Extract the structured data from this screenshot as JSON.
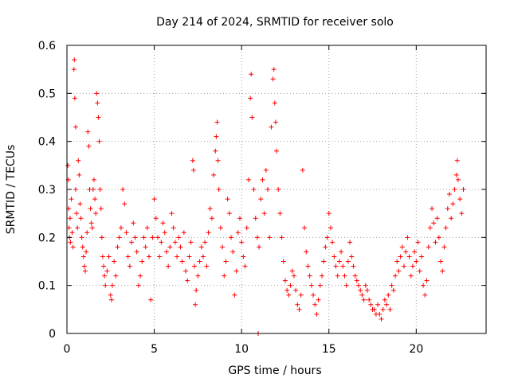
{
  "chart_data": {
    "type": "scatter",
    "title": "Day 214 of 2024, SRMTID for receiver solo",
    "xlabel": "GPS time / hours",
    "ylabel": "SRMTID / TECUs",
    "xlim": [
      0,
      24
    ],
    "ylim": [
      0,
      0.6
    ],
    "xticks": [
      0,
      5,
      10,
      15,
      20
    ],
    "yticks": [
      0,
      0.1,
      0.2,
      0.3,
      0.4,
      0.5,
      0.6
    ],
    "xtick_labels": [
      "0",
      "5",
      "10",
      "15",
      "20"
    ],
    "ytick_labels": [
      "0",
      "0.1",
      "0.2",
      "0.3",
      "0.4",
      "0.5",
      "0.6"
    ],
    "grid": true,
    "marker": "+",
    "color": "#ff0000",
    "series": [
      {
        "name": "SRMTID",
        "points": [
          [
            0.05,
            0.35
          ],
          [
            0.08,
            0.32
          ],
          [
            0.1,
            0.26
          ],
          [
            0.12,
            0.22
          ],
          [
            0.15,
            0.2
          ],
          [
            0.18,
            0.24
          ],
          [
            0.2,
            0.19
          ],
          [
            0.25,
            0.28
          ],
          [
            0.3,
            0.21
          ],
          [
            0.35,
            0.18
          ],
          [
            0.4,
            0.55
          ],
          [
            0.42,
            0.57
          ],
          [
            0.45,
            0.49
          ],
          [
            0.5,
            0.43
          ],
          [
            0.5,
            0.3
          ],
          [
            0.55,
            0.25
          ],
          [
            0.6,
            0.22
          ],
          [
            0.65,
            0.36
          ],
          [
            0.7,
            0.33
          ],
          [
            0.75,
            0.27
          ],
          [
            0.8,
            0.24
          ],
          [
            0.85,
            0.2
          ],
          [
            0.9,
            0.18
          ],
          [
            0.95,
            0.16
          ],
          [
            1.0,
            0.14
          ],
          [
            1.05,
            0.13
          ],
          [
            1.1,
            0.17
          ],
          [
            1.15,
            0.21
          ],
          [
            1.2,
            0.42
          ],
          [
            1.25,
            0.39
          ],
          [
            1.3,
            0.3
          ],
          [
            1.35,
            0.26
          ],
          [
            1.4,
            0.23
          ],
          [
            1.45,
            0.22
          ],
          [
            1.5,
            0.3
          ],
          [
            1.55,
            0.32
          ],
          [
            1.6,
            0.28
          ],
          [
            1.65,
            0.25
          ],
          [
            1.7,
            0.5
          ],
          [
            1.75,
            0.48
          ],
          [
            1.8,
            0.45
          ],
          [
            1.85,
            0.4
          ],
          [
            1.9,
            0.3
          ],
          [
            1.95,
            0.26
          ],
          [
            2.0,
            0.2
          ],
          [
            2.05,
            0.16
          ],
          [
            2.1,
            0.14
          ],
          [
            2.15,
            0.12
          ],
          [
            2.2,
            0.1
          ],
          [
            2.3,
            0.13
          ],
          [
            2.4,
            0.16
          ],
          [
            2.5,
            0.08
          ],
          [
            2.55,
            0.07
          ],
          [
            2.6,
            0.1
          ],
          [
            2.7,
            0.15
          ],
          [
            2.8,
            0.12
          ],
          [
            2.9,
            0.18
          ],
          [
            3.0,
            0.2
          ],
          [
            3.1,
            0.22
          ],
          [
            3.2,
            0.3
          ],
          [
            3.3,
            0.27
          ],
          [
            3.4,
            0.21
          ],
          [
            3.5,
            0.16
          ],
          [
            3.6,
            0.14
          ],
          [
            3.7,
            0.19
          ],
          [
            3.8,
            0.23
          ],
          [
            3.9,
            0.2
          ],
          [
            4.0,
            0.17
          ],
          [
            4.1,
            0.1
          ],
          [
            4.2,
            0.12
          ],
          [
            4.3,
            0.15
          ],
          [
            4.4,
            0.2
          ],
          [
            4.5,
            0.18
          ],
          [
            4.6,
            0.22
          ],
          [
            4.7,
            0.16
          ],
          [
            4.8,
            0.07
          ],
          [
            4.9,
            0.2
          ],
          [
            5.0,
            0.28
          ],
          [
            5.1,
            0.24
          ],
          [
            5.2,
            0.2
          ],
          [
            5.3,
            0.16
          ],
          [
            5.4,
            0.19
          ],
          [
            5.5,
            0.23
          ],
          [
            5.6,
            0.21
          ],
          [
            5.7,
            0.17
          ],
          [
            5.8,
            0.14
          ],
          [
            5.9,
            0.18
          ],
          [
            6.0,
            0.25
          ],
          [
            6.1,
            0.22
          ],
          [
            6.2,
            0.19
          ],
          [
            6.3,
            0.16
          ],
          [
            6.4,
            0.2
          ],
          [
            6.5,
            0.18
          ],
          [
            6.6,
            0.15
          ],
          [
            6.7,
            0.21
          ],
          [
            6.8,
            0.13
          ],
          [
            6.9,
            0.11
          ],
          [
            7.0,
            0.16
          ],
          [
            7.1,
            0.19
          ],
          [
            7.2,
            0.36
          ],
          [
            7.25,
            0.34
          ],
          [
            7.3,
            0.14
          ],
          [
            7.35,
            0.06
          ],
          [
            7.4,
            0.09
          ],
          [
            7.5,
            0.12
          ],
          [
            7.6,
            0.15
          ],
          [
            7.7,
            0.18
          ],
          [
            7.8,
            0.16
          ],
          [
            7.9,
            0.19
          ],
          [
            8.0,
            0.14
          ],
          [
            8.1,
            0.21
          ],
          [
            8.2,
            0.26
          ],
          [
            8.3,
            0.24
          ],
          [
            8.4,
            0.33
          ],
          [
            8.5,
            0.38
          ],
          [
            8.55,
            0.41
          ],
          [
            8.6,
            0.44
          ],
          [
            8.65,
            0.36
          ],
          [
            8.7,
            0.3
          ],
          [
            8.8,
            0.22
          ],
          [
            8.9,
            0.18
          ],
          [
            9.0,
            0.12
          ],
          [
            9.1,
            0.15
          ],
          [
            9.2,
            0.28
          ],
          [
            9.3,
            0.25
          ],
          [
            9.4,
            0.2
          ],
          [
            9.5,
            0.17
          ],
          [
            9.6,
            0.08
          ],
          [
            9.7,
            0.13
          ],
          [
            9.8,
            0.21
          ],
          [
            9.9,
            0.24
          ],
          [
            10.0,
            0.19
          ],
          [
            10.1,
            0.16
          ],
          [
            10.2,
            0.14
          ],
          [
            10.3,
            0.22
          ],
          [
            10.4,
            0.32
          ],
          [
            10.5,
            0.49
          ],
          [
            10.55,
            0.54
          ],
          [
            10.6,
            0.45
          ],
          [
            10.7,
            0.3
          ],
          [
            10.8,
            0.24
          ],
          [
            10.9,
            0.2
          ],
          [
            10.95,
            0.0
          ],
          [
            11.0,
            0.18
          ],
          [
            11.1,
            0.28
          ],
          [
            11.2,
            0.32
          ],
          [
            11.3,
            0.25
          ],
          [
            11.4,
            0.34
          ],
          [
            11.5,
            0.3
          ],
          [
            11.6,
            0.2
          ],
          [
            11.7,
            0.43
          ],
          [
            11.8,
            0.53
          ],
          [
            11.85,
            0.55
          ],
          [
            11.9,
            0.48
          ],
          [
            11.95,
            0.44
          ],
          [
            12.0,
            0.38
          ],
          [
            12.1,
            0.3
          ],
          [
            12.2,
            0.25
          ],
          [
            12.3,
            0.2
          ],
          [
            12.4,
            0.15
          ],
          [
            12.5,
            0.11
          ],
          [
            12.6,
            0.09
          ],
          [
            12.7,
            0.08
          ],
          [
            12.8,
            0.1
          ],
          [
            12.9,
            0.13
          ],
          [
            13.0,
            0.12
          ],
          [
            13.1,
            0.09
          ],
          [
            13.2,
            0.06
          ],
          [
            13.3,
            0.05
          ],
          [
            13.4,
            0.08
          ],
          [
            13.5,
            0.34
          ],
          [
            13.6,
            0.22
          ],
          [
            13.7,
            0.17
          ],
          [
            13.8,
            0.14
          ],
          [
            13.9,
            0.12
          ],
          [
            14.0,
            0.1
          ],
          [
            14.1,
            0.08
          ],
          [
            14.2,
            0.06
          ],
          [
            14.3,
            0.04
          ],
          [
            14.4,
            0.07
          ],
          [
            14.5,
            0.1
          ],
          [
            14.6,
            0.12
          ],
          [
            14.7,
            0.15
          ],
          [
            14.8,
            0.18
          ],
          [
            14.9,
            0.2
          ],
          [
            15.0,
            0.25
          ],
          [
            15.1,
            0.22
          ],
          [
            15.2,
            0.19
          ],
          [
            15.3,
            0.16
          ],
          [
            15.4,
            0.14
          ],
          [
            15.5,
            0.12
          ],
          [
            15.6,
            0.15
          ],
          [
            15.7,
            0.17
          ],
          [
            15.8,
            0.14
          ],
          [
            15.9,
            0.12
          ],
          [
            16.0,
            0.1
          ],
          [
            16.1,
            0.15
          ],
          [
            16.2,
            0.19
          ],
          [
            16.3,
            0.16
          ],
          [
            16.4,
            0.14
          ],
          [
            16.5,
            0.12
          ],
          [
            16.6,
            0.11
          ],
          [
            16.7,
            0.1
          ],
          [
            16.8,
            0.09
          ],
          [
            16.9,
            0.08
          ],
          [
            17.0,
            0.07
          ],
          [
            17.1,
            0.1
          ],
          [
            17.2,
            0.09
          ],
          [
            17.3,
            0.07
          ],
          [
            17.4,
            0.06
          ],
          [
            17.5,
            0.05
          ],
          [
            17.6,
            0.05
          ],
          [
            17.7,
            0.04
          ],
          [
            17.8,
            0.06
          ],
          [
            17.9,
            0.04
          ],
          [
            18.0,
            0.03
          ],
          [
            18.1,
            0.05
          ],
          [
            18.2,
            0.07
          ],
          [
            18.3,
            0.06
          ],
          [
            18.4,
            0.08
          ],
          [
            18.5,
            0.05
          ],
          [
            18.6,
            0.1
          ],
          [
            18.7,
            0.09
          ],
          [
            18.8,
            0.12
          ],
          [
            18.9,
            0.15
          ],
          [
            19.0,
            0.13
          ],
          [
            19.1,
            0.16
          ],
          [
            19.2,
            0.18
          ],
          [
            19.3,
            0.14
          ],
          [
            19.4,
            0.17
          ],
          [
            19.5,
            0.2
          ],
          [
            19.6,
            0.16
          ],
          [
            19.7,
            0.12
          ],
          [
            19.8,
            0.14
          ],
          [
            19.9,
            0.17
          ],
          [
            20.0,
            0.15
          ],
          [
            20.1,
            0.19
          ],
          [
            20.2,
            0.13
          ],
          [
            20.3,
            0.16
          ],
          [
            20.4,
            0.1
          ],
          [
            20.5,
            0.08
          ],
          [
            20.6,
            0.11
          ],
          [
            20.7,
            0.18
          ],
          [
            20.8,
            0.22
          ],
          [
            20.9,
            0.26
          ],
          [
            21.0,
            0.23
          ],
          [
            21.1,
            0.19
          ],
          [
            21.2,
            0.24
          ],
          [
            21.3,
            0.2
          ],
          [
            21.4,
            0.15
          ],
          [
            21.5,
            0.13
          ],
          [
            21.6,
            0.18
          ],
          [
            21.7,
            0.22
          ],
          [
            21.8,
            0.26
          ],
          [
            21.9,
            0.29
          ],
          [
            22.0,
            0.24
          ],
          [
            22.1,
            0.27
          ],
          [
            22.2,
            0.3
          ],
          [
            22.3,
            0.33
          ],
          [
            22.35,
            0.36
          ],
          [
            22.4,
            0.32
          ],
          [
            22.5,
            0.28
          ],
          [
            22.6,
            0.25
          ],
          [
            22.7,
            0.3
          ]
        ]
      }
    ]
  }
}
